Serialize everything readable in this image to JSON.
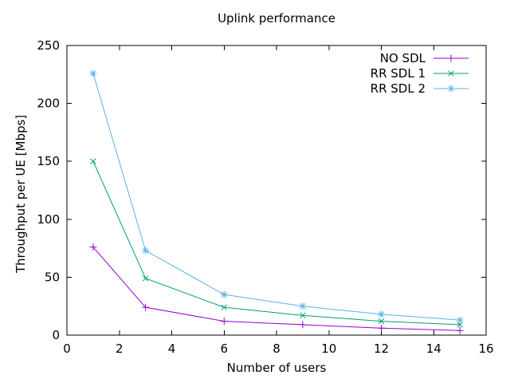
{
  "chart_data": {
    "type": "line",
    "title": "Uplink performance",
    "xlabel": "Number of users",
    "ylabel": "Throughput per UE [Mbps]",
    "xlim": [
      0,
      16
    ],
    "ylim": [
      0,
      250
    ],
    "x_ticks": [
      0,
      2,
      4,
      6,
      8,
      10,
      12,
      14,
      16
    ],
    "y_ticks": [
      0,
      50,
      100,
      150,
      200,
      250
    ],
    "grid": false,
    "legend_position": "inside-top-right",
    "background_color": "#ffffff",
    "axis_color": "#000000",
    "x": [
      1,
      3,
      6,
      9,
      12,
      15
    ],
    "series": [
      {
        "name": "NO SDL",
        "color": "#9400d3",
        "marker": "plus",
        "values": [
          76,
          24,
          12,
          9,
          6,
          4
        ]
      },
      {
        "name": "RR SDL 1",
        "color": "#009e73",
        "marker": "cross",
        "values": [
          150,
          49,
          24,
          17,
          12,
          9
        ]
      },
      {
        "name": "RR SDL 2",
        "color": "#56b4e9",
        "marker": "asterisk",
        "values": [
          226,
          73,
          35,
          25,
          18,
          13
        ]
      }
    ]
  }
}
